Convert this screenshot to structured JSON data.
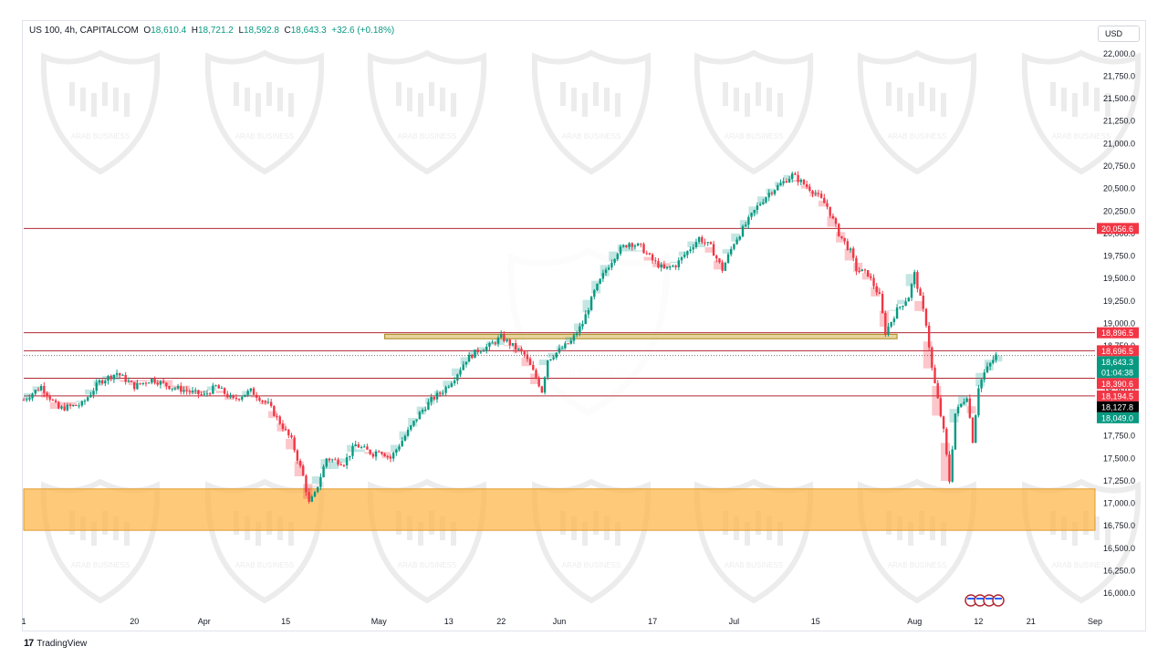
{
  "header": {
    "symbol": "US 100, 4h, CAPITALCOM",
    "open_label": "O",
    "open": "18,610.4",
    "high_label": "H",
    "high": "18,721.2",
    "low_label": "L",
    "low": "18,592.8",
    "close_label": "C",
    "close": "18,643.3",
    "change": "+32.6 (+0.18%)"
  },
  "currency": "USD",
  "watermark_text": "ARAB BUSINESS",
  "footer": {
    "brand": "TradingView",
    "logo_glyph": "17"
  },
  "colors": {
    "up": "#089981",
    "down": "#f23645",
    "zone": "#ffb74d",
    "level": "#b22833",
    "label_red": "#f23645",
    "label_green": "#089981",
    "label_black": "#000000",
    "cloud_green": "#26a69a",
    "cloud_red": "#f23645",
    "gold_box": "#c9a227"
  },
  "chart_data": {
    "type": "candlestick",
    "symbol": "US 100",
    "timeframe": "4h",
    "ylim": [
      15900,
      22150
    ],
    "y_ticks": [
      "22,000.0",
      "21,750.0",
      "21,500.0",
      "21,250.0",
      "21,000.0",
      "20,750.0",
      "20,500.0",
      "20,250.0",
      "20,000.0",
      "19,750.0",
      "19,500.0",
      "19,250.0",
      "19,000.0",
      "18,750.0",
      "18,500.0",
      "18,250.0",
      "18,000.0",
      "17,750.0",
      "17,500.0",
      "17,250.0",
      "17,000.0",
      "16,750.0",
      "16,500.0",
      "16,250.0",
      "16,000.0"
    ],
    "y_tick_values": [
      22000,
      21750,
      21500,
      21250,
      21000,
      20750,
      20500,
      20250,
      20000,
      19750,
      19500,
      19250,
      19000,
      18750,
      18500,
      18250,
      18000,
      17750,
      17500,
      17250,
      17000,
      16750,
      16500,
      16250,
      16000
    ],
    "x_ticks": [
      "1",
      "20",
      "Apr",
      "15",
      "May",
      "13",
      "22",
      "Jun",
      "17",
      "Jul",
      "15",
      "Aug",
      "12",
      "21",
      "Sep"
    ],
    "x_tick_days": [
      0,
      19,
      31,
      45,
      61,
      73,
      82,
      92,
      108,
      122,
      136,
      153,
      164,
      173,
      184
    ],
    "x_day_range": [
      0,
      184
    ],
    "price_path": [
      [
        0,
        18150
      ],
      [
        3,
        18300
      ],
      [
        6,
        18050
      ],
      [
        10,
        18100
      ],
      [
        13,
        18350
      ],
      [
        16,
        18450
      ],
      [
        19,
        18300
      ],
      [
        22,
        18380
      ],
      [
        25,
        18300
      ],
      [
        28,
        18250
      ],
      [
        31,
        18200
      ],
      [
        33,
        18300
      ],
      [
        36,
        18150
      ],
      [
        39,
        18250
      ],
      [
        42,
        18100
      ],
      [
        44,
        17900
      ],
      [
        46,
        17700
      ],
      [
        48,
        17300
      ],
      [
        49,
        17000
      ],
      [
        50,
        17100
      ],
      [
        52,
        17500
      ],
      [
        55,
        17450
      ],
      [
        57,
        17650
      ],
      [
        60,
        17550
      ],
      [
        61,
        17600
      ],
      [
        63,
        17500
      ],
      [
        66,
        17800
      ],
      [
        68,
        18000
      ],
      [
        70,
        18150
      ],
      [
        72,
        18250
      ],
      [
        74,
        18400
      ],
      [
        76,
        18600
      ],
      [
        78,
        18700
      ],
      [
        80,
        18750
      ],
      [
        82,
        18850
      ],
      [
        84,
        18750
      ],
      [
        86,
        18650
      ],
      [
        88,
        18400
      ],
      [
        89,
        18250
      ],
      [
        90,
        18600
      ],
      [
        92,
        18700
      ],
      [
        94,
        18800
      ],
      [
        96,
        19000
      ],
      [
        98,
        19350
      ],
      [
        100,
        19600
      ],
      [
        102,
        19800
      ],
      [
        104,
        19900
      ],
      [
        106,
        19850
      ],
      [
        108,
        19700
      ],
      [
        110,
        19600
      ],
      [
        112,
        19650
      ],
      [
        114,
        19800
      ],
      [
        116,
        19950
      ],
      [
        118,
        19850
      ],
      [
        120,
        19600
      ],
      [
        122,
        19900
      ],
      [
        124,
        20100
      ],
      [
        126,
        20300
      ],
      [
        128,
        20450
      ],
      [
        130,
        20550
      ],
      [
        132,
        20650
      ],
      [
        134,
        20550
      ],
      [
        136,
        20450
      ],
      [
        138,
        20300
      ],
      [
        140,
        20000
      ],
      [
        142,
        19800
      ],
      [
        143,
        19600
      ],
      [
        145,
        19550
      ],
      [
        147,
        19300
      ],
      [
        148,
        18900
      ],
      [
        150,
        19150
      ],
      [
        152,
        19300
      ],
      [
        153,
        19550
      ],
      [
        155,
        19000
      ],
      [
        156,
        18500
      ],
      [
        158,
        17800
      ],
      [
        159,
        17250
      ],
      [
        160,
        18000
      ],
      [
        162,
        18200
      ],
      [
        163,
        17700
      ],
      [
        164,
        18300
      ],
      [
        165,
        18450
      ],
      [
        166,
        18550
      ],
      [
        167,
        18643
      ]
    ],
    "zones": [
      {
        "from": 16700,
        "to": 17160
      }
    ],
    "horizontal_levels": [
      20056.6,
      18896.5,
      18696.5,
      18390.6,
      18194.5
    ],
    "price_labels": [
      {
        "text": "20,056.6",
        "value": 20056.6,
        "color": "red"
      },
      {
        "text": "18,896.5",
        "value": 18896.5,
        "color": "red"
      },
      {
        "text": "18,696.5",
        "value": 18696.5,
        "color": "red"
      },
      {
        "text": "18,643.3",
        "value": 18643.3,
        "color": "green",
        "sub": "01:04:38"
      },
      {
        "text": "18,390.6",
        "value": 18390.6,
        "color": "red"
      },
      {
        "text": "18,194.5",
        "value": 18194.5,
        "color": "red"
      },
      {
        "text": "18,127.8",
        "value": 18127.8,
        "color": "black"
      },
      {
        "text": "18,049.0",
        "value": 18049.0,
        "color": "green"
      }
    ],
    "gold_box": {
      "from_day": 62,
      "to_day": 150,
      "low": 18830,
      "high": 18880
    },
    "grid": false,
    "legend": "none"
  }
}
